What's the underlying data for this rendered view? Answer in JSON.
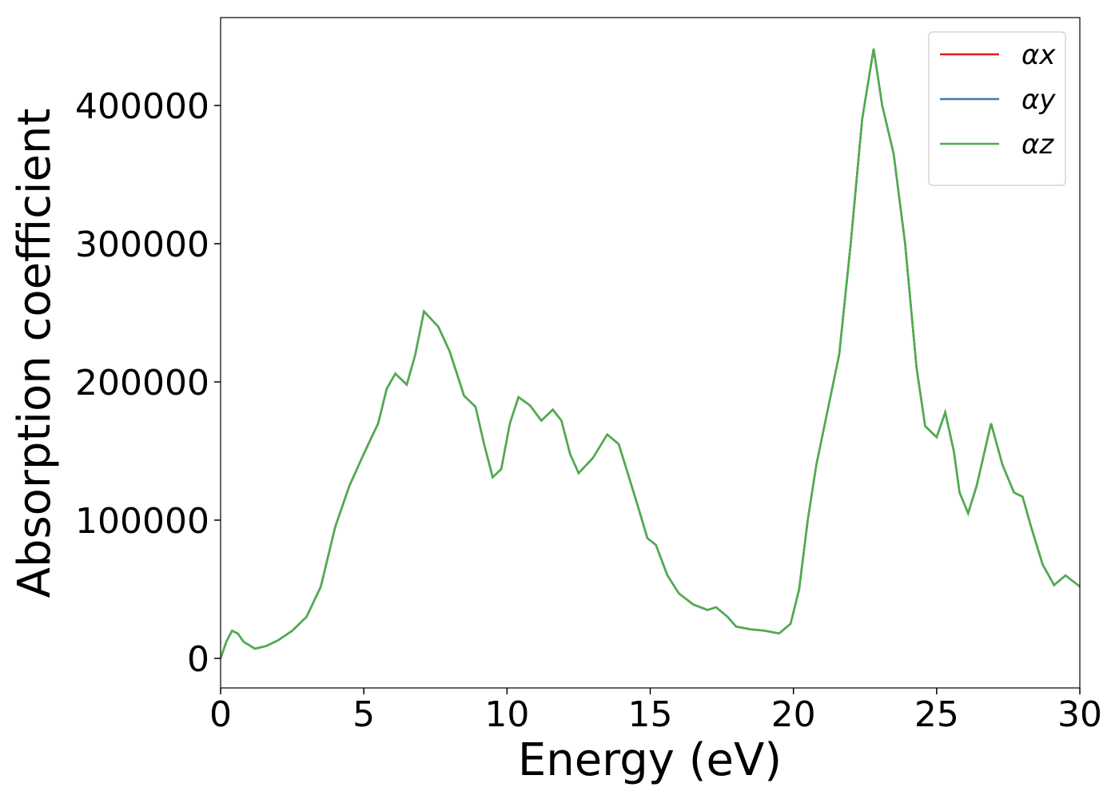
{
  "chart_data": {
    "type": "line",
    "xlabel": "Energy (eV)",
    "ylabel": "Absorption coefficient",
    "xlim": [
      0,
      30
    ],
    "ylim": [
      -21400,
      463600
    ],
    "xticks": [
      0,
      5,
      10,
      15,
      20,
      25,
      30
    ],
    "yticks": [
      0,
      100000,
      200000,
      300000,
      400000
    ],
    "legend": "upper right",
    "x": [
      0,
      0.2,
      0.4,
      0.6,
      0.8,
      1.2,
      1.6,
      2.0,
      2.5,
      3.0,
      3.5,
      4.0,
      4.5,
      5.0,
      5.5,
      5.8,
      6.1,
      6.5,
      6.8,
      7.1,
      7.6,
      8.0,
      8.5,
      8.9,
      9.2,
      9.5,
      9.8,
      10.1,
      10.4,
      10.8,
      11.2,
      11.6,
      11.9,
      12.2,
      12.5,
      13.0,
      13.5,
      13.9,
      14.2,
      14.6,
      14.9,
      15.2,
      15.6,
      16.0,
      16.5,
      17.0,
      17.3,
      17.7,
      18.0,
      18.5,
      19.0,
      19.5,
      19.9,
      20.2,
      20.5,
      20.8,
      21.2,
      21.6,
      22.0,
      22.4,
      22.8,
      23.1,
      23.5,
      23.9,
      24.3,
      24.6,
      25.0,
      25.3,
      25.6,
      25.8,
      26.1,
      26.4,
      26.9,
      27.3,
      27.7,
      28.0,
      28.3,
      28.7,
      29.1,
      29.5,
      30.0
    ],
    "series": [
      {
        "name": "αx",
        "color": "#e41a1c",
        "values": [
          0,
          12000,
          20000,
          18000,
          12000,
          7000,
          9000,
          13000,
          20000,
          30000,
          52000,
          95000,
          125000,
          148000,
          170000,
          195000,
          206000,
          198000,
          220000,
          251000,
          240000,
          222000,
          190000,
          182000,
          155000,
          131000,
          137000,
          170000,
          189000,
          183000,
          172000,
          180000,
          172000,
          148000,
          134000,
          145000,
          162000,
          155000,
          135000,
          108000,
          87000,
          82000,
          60000,
          47000,
          39000,
          35000,
          37000,
          30000,
          23000,
          21000,
          20000,
          18000,
          25000,
          50000,
          100000,
          140000,
          180000,
          220000,
          300000,
          390000,
          441000,
          400000,
          365000,
          300000,
          210000,
          168000,
          160000,
          178000,
          150000,
          120000,
          105000,
          125000,
          170000,
          140000,
          120000,
          117000,
          95000,
          68000,
          53000,
          60000,
          52000
        ]
      },
      {
        "name": "αy",
        "color": "#377eb8",
        "values": [
          0,
          12000,
          20000,
          18000,
          12000,
          7000,
          9000,
          13000,
          20000,
          30000,
          52000,
          95000,
          125000,
          148000,
          170000,
          195000,
          206000,
          198000,
          220000,
          251000,
          240000,
          222000,
          190000,
          182000,
          155000,
          131000,
          137000,
          170000,
          189000,
          183000,
          172000,
          180000,
          172000,
          148000,
          134000,
          145000,
          162000,
          155000,
          135000,
          108000,
          87000,
          82000,
          60000,
          47000,
          39000,
          35000,
          37000,
          30000,
          23000,
          21000,
          20000,
          18000,
          25000,
          50000,
          100000,
          140000,
          180000,
          220000,
          300000,
          390000,
          441000,
          400000,
          365000,
          300000,
          210000,
          168000,
          160000,
          178000,
          150000,
          120000,
          105000,
          125000,
          170000,
          140000,
          120000,
          117000,
          95000,
          68000,
          53000,
          60000,
          52000
        ]
      },
      {
        "name": "αz",
        "color": "#4daf4a",
        "values": [
          0,
          12000,
          20000,
          18000,
          12000,
          7000,
          9000,
          13000,
          20000,
          30000,
          52000,
          95000,
          125000,
          148000,
          170000,
          195000,
          206000,
          198000,
          220000,
          251000,
          240000,
          222000,
          190000,
          182000,
          155000,
          131000,
          137000,
          170000,
          189000,
          183000,
          172000,
          180000,
          172000,
          148000,
          134000,
          145000,
          162000,
          155000,
          135000,
          108000,
          87000,
          82000,
          60000,
          47000,
          39000,
          35000,
          37000,
          30000,
          23000,
          21000,
          20000,
          18000,
          25000,
          50000,
          100000,
          140000,
          180000,
          220000,
          300000,
          390000,
          441000,
          400000,
          365000,
          300000,
          210000,
          168000,
          160000,
          178000,
          150000,
          120000,
          105000,
          125000,
          170000,
          140000,
          120000,
          117000,
          95000,
          68000,
          53000,
          60000,
          52000
        ]
      }
    ]
  }
}
